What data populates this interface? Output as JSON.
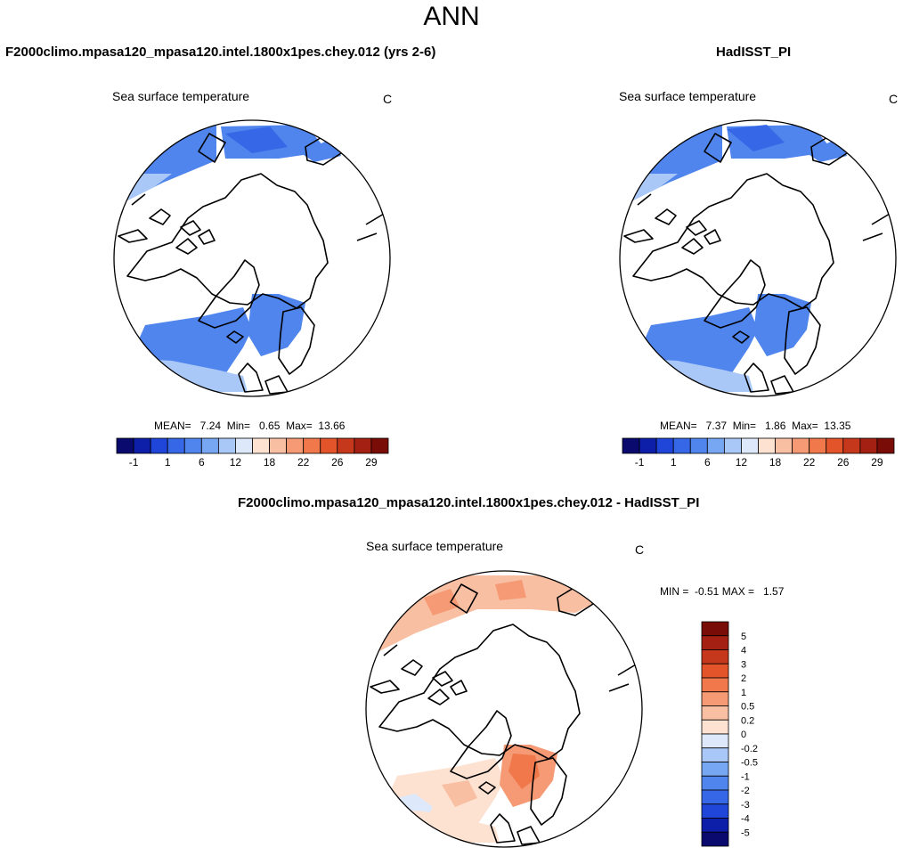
{
  "main_title": "ANN",
  "chart_data": [
    {
      "type": "heatmap",
      "projection": "polar stereographic (Northern Hemisphere)",
      "panel_title": "F2000climo.mpasa120_mpasa120.intel.1800x1pes.chey.012 (yrs 2-6)",
      "variable": "Sea surface temperature",
      "units": "C",
      "stats_text": "MEAN=   7.24  Min=   0.65  Max=  13.66",
      "stats": {
        "mean": 7.24,
        "min": 0.65,
        "max": 13.66
      },
      "colorbar": {
        "orientation": "horizontal",
        "tick_labels": [
          "-1",
          "1",
          "6",
          "12",
          "18",
          "22",
          "26",
          "29"
        ],
        "colors": [
          "#0a0a6e",
          "#0d1fa8",
          "#1f46d8",
          "#3567e6",
          "#4f85ed",
          "#77a7f2",
          "#a9c8f7",
          "#dde9fb",
          "#fde2d2",
          "#f8bfa3",
          "#f59a74",
          "#f0784b",
          "#e3542a",
          "#c6381b",
          "#a32012",
          "#7a0c07"
        ]
      }
    },
    {
      "type": "heatmap",
      "projection": "polar stereographic (Northern Hemisphere)",
      "panel_title": "HadISST_PI",
      "variable": "Sea surface temperature",
      "units": "C",
      "stats_text": "MEAN=   7.37  Min=   1.86  Max=  13.35",
      "stats": {
        "mean": 7.37,
        "min": 1.86,
        "max": 13.35
      },
      "colorbar": {
        "orientation": "horizontal",
        "tick_labels": [
          "-1",
          "1",
          "6",
          "12",
          "18",
          "22",
          "26",
          "29"
        ],
        "colors": [
          "#0a0a6e",
          "#0d1fa8",
          "#1f46d8",
          "#3567e6",
          "#4f85ed",
          "#77a7f2",
          "#a9c8f7",
          "#dde9fb",
          "#fde2d2",
          "#f8bfa3",
          "#f59a74",
          "#f0784b",
          "#e3542a",
          "#c6381b",
          "#a32012",
          "#7a0c07"
        ]
      }
    },
    {
      "type": "heatmap",
      "projection": "polar stereographic (Northern Hemisphere)",
      "panel_title": "F2000climo.mpasa120_mpasa120.intel.1800x1pes.chey.012 - HadISST_PI",
      "variable": "Sea surface temperature",
      "units": "C",
      "stats_text": "MIN =  -0.51 MAX =   1.57",
      "stats": {
        "min": -0.51,
        "max": 1.57
      },
      "colorbar": {
        "orientation": "vertical",
        "tick_labels": [
          "5",
          "4",
          "3",
          "2",
          "1",
          "0.5",
          "0.2",
          "0",
          "-0.2",
          "-0.5",
          "-1",
          "-2",
          "-3",
          "-4",
          "-5"
        ],
        "colors": [
          "#7a0c07",
          "#a32012",
          "#c6381b",
          "#e3542a",
          "#f0784b",
          "#f59a74",
          "#f8bfa3",
          "#fde2d2",
          "#dde9fb",
          "#a9c8f7",
          "#77a7f2",
          "#4f85ed",
          "#3567e6",
          "#1f46d8",
          "#0d1fa8",
          "#0a0a6e"
        ]
      }
    }
  ]
}
